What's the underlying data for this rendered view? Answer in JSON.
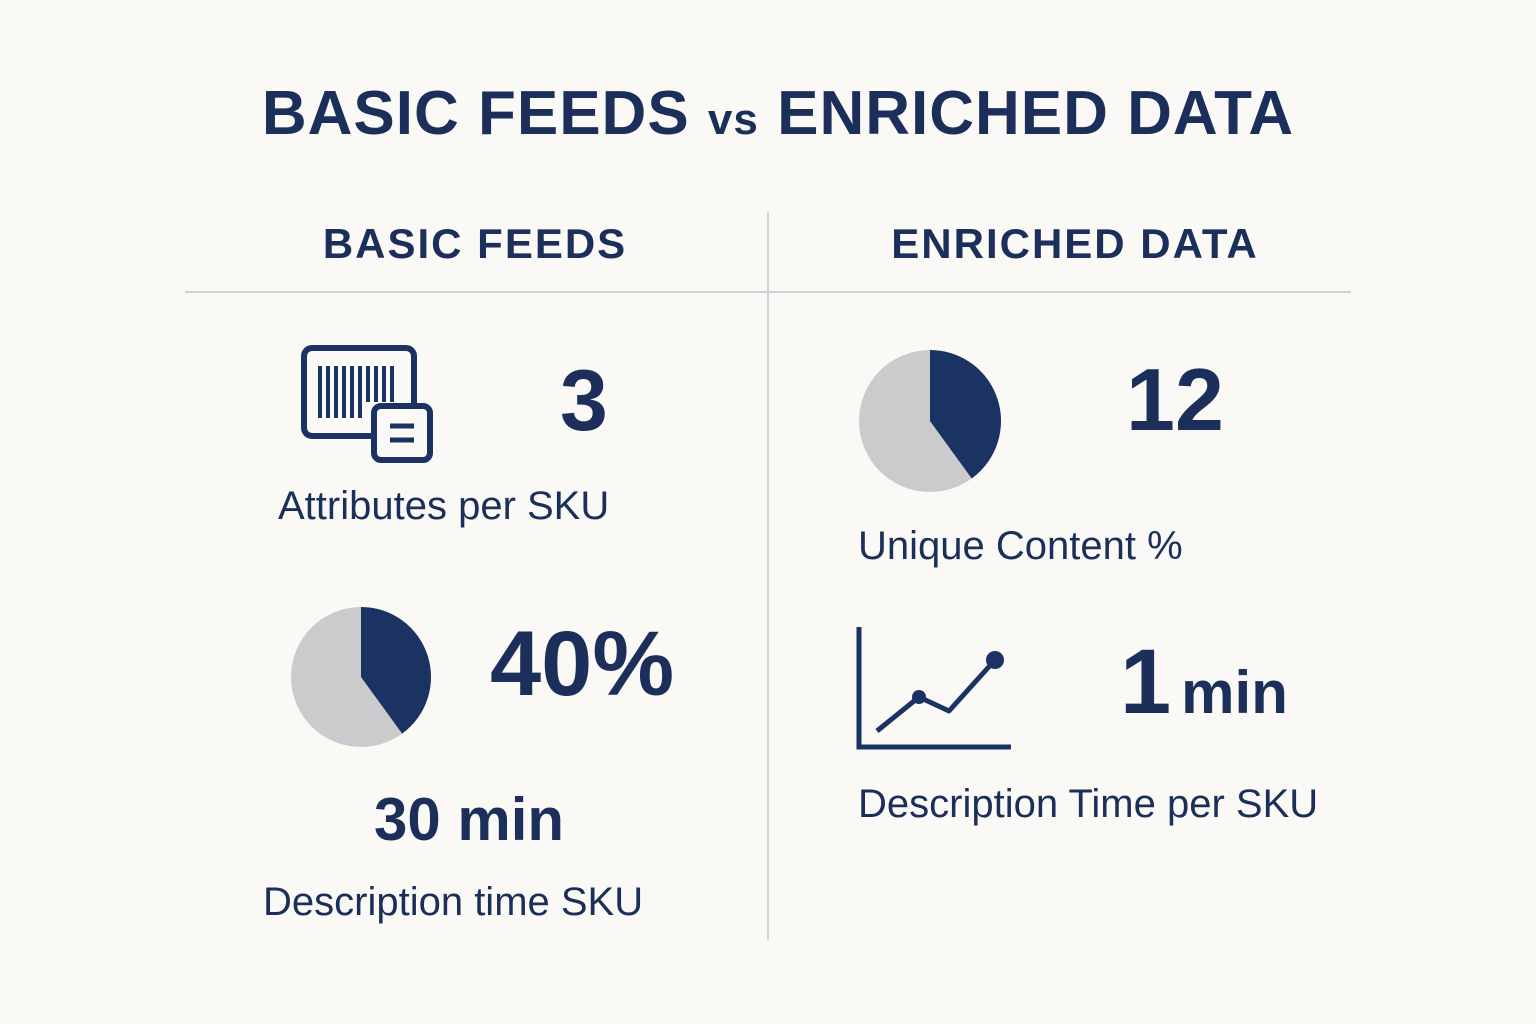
{
  "title": {
    "left": "BASIC FEEDS",
    "vs": "vs",
    "right": "ENRICHED DATA"
  },
  "columns": {
    "basic": {
      "heading": "BASIC FEEDS",
      "metrics": [
        {
          "value": "3",
          "label": "Attributes per SKU",
          "icon": "barcode-icon"
        },
        {
          "value": "40%",
          "label": "",
          "icon": "pie-chart-icon",
          "pie_fraction": 0.4
        },
        {
          "value": "30 min",
          "label": "Description time SKU"
        }
      ]
    },
    "enriched": {
      "heading": "ENRICHED DATA",
      "metrics": [
        {
          "value": "12",
          "label": "Unique Content %",
          "icon": "pie-chart-icon",
          "pie_fraction": 0.4
        },
        {
          "value_number": "1",
          "value_unit": "min",
          "label": "Description Time per SKU",
          "icon": "line-chart-icon"
        }
      ]
    }
  },
  "colors": {
    "navy": "#1b3362",
    "gray": "#cbcbcd",
    "background": "#faf9f5",
    "divider": "#cfd2d8"
  }
}
